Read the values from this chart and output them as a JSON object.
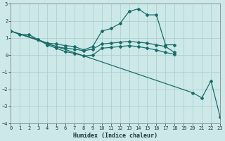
{
  "xlabel": "Humidex (Indice chaleur)",
  "xlim": [
    0,
    23
  ],
  "ylim": [
    -4,
    3
  ],
  "bg_color": "#cce8e8",
  "grid_color": "#aacccc",
  "line_color": "#1a6e6a",
  "series": [
    {
      "x": [
        0,
        1,
        2,
        3,
        4,
        5,
        6,
        7,
        8,
        9,
        10,
        11,
        12,
        13,
        14,
        15,
        16,
        17,
        18
      ],
      "y": [
        1.4,
        1.2,
        1.2,
        0.9,
        0.7,
        0.65,
        0.55,
        0.5,
        0.3,
        0.5,
        1.4,
        1.55,
        1.85,
        2.55,
        2.7,
        2.35,
        2.35,
        0.6,
        0.6
      ]
    },
    {
      "x": [
        0,
        3,
        4,
        5,
        6,
        7,
        8,
        9,
        10,
        11,
        12,
        13,
        14,
        15,
        16,
        17,
        18
      ],
      "y": [
        1.4,
        0.9,
        0.65,
        0.5,
        0.4,
        0.35,
        0.25,
        0.35,
        0.65,
        0.7,
        0.75,
        0.8,
        0.75,
        0.7,
        0.6,
        0.5,
        0.15
      ]
    },
    {
      "x": [
        0,
        3,
        4,
        5,
        6,
        7,
        8,
        9,
        10,
        11,
        12,
        13,
        14,
        15,
        16,
        17,
        18
      ],
      "y": [
        1.4,
        0.9,
        0.6,
        0.4,
        0.2,
        0.1,
        -0.05,
        0.0,
        0.4,
        0.45,
        0.5,
        0.55,
        0.5,
        0.4,
        0.3,
        0.15,
        0.05
      ]
    },
    {
      "x": [
        0,
        20,
        21,
        22,
        23
      ],
      "y": [
        1.4,
        -2.2,
        -2.5,
        -1.5,
        -3.6
      ]
    }
  ]
}
